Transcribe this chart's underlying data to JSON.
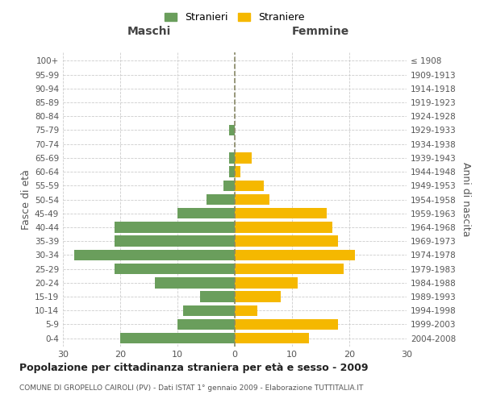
{
  "age_groups": [
    "0-4",
    "5-9",
    "10-14",
    "15-19",
    "20-24",
    "25-29",
    "30-34",
    "35-39",
    "40-44",
    "45-49",
    "50-54",
    "55-59",
    "60-64",
    "65-69",
    "70-74",
    "75-79",
    "80-84",
    "85-89",
    "90-94",
    "95-99",
    "100+"
  ],
  "birth_years": [
    "2004-2008",
    "1999-2003",
    "1994-1998",
    "1989-1993",
    "1984-1988",
    "1979-1983",
    "1974-1978",
    "1969-1973",
    "1964-1968",
    "1959-1963",
    "1954-1958",
    "1949-1953",
    "1944-1948",
    "1939-1943",
    "1934-1938",
    "1929-1933",
    "1924-1928",
    "1919-1923",
    "1914-1918",
    "1909-1913",
    "≤ 1908"
  ],
  "males": [
    20,
    10,
    9,
    6,
    14,
    21,
    28,
    21,
    21,
    10,
    5,
    2,
    1,
    1,
    0,
    1,
    0,
    0,
    0,
    0,
    0
  ],
  "females": [
    13,
    18,
    4,
    8,
    11,
    19,
    21,
    18,
    17,
    16,
    6,
    5,
    1,
    3,
    0,
    0,
    0,
    0,
    0,
    0,
    0
  ],
  "male_color": "#6a9e5c",
  "female_color": "#f5b800",
  "title": "Popolazione per cittadinanza straniera per età e sesso - 2009",
  "subtitle": "COMUNE DI GROPELLO CAIROLI (PV) - Dati ISTAT 1° gennaio 2009 - Elaborazione TUTTITALIA.IT",
  "xlabel_left": "Maschi",
  "xlabel_right": "Femmine",
  "ylabel_left": "Fasce di età",
  "ylabel_right": "Anni di nascita",
  "legend_male": "Stranieri",
  "legend_female": "Straniere",
  "xlim": 30,
  "background_color": "#ffffff",
  "grid_color": "#cccccc"
}
